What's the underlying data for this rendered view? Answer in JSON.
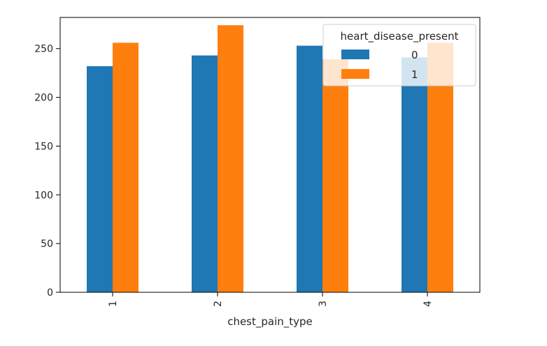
{
  "chart_data": {
    "type": "bar",
    "title": "",
    "xlabel": "chest_pain_type",
    "ylabel": "",
    "categories": [
      "1",
      "2",
      "3",
      "4"
    ],
    "series": [
      {
        "name": "0",
        "values": [
          232,
          243,
          253,
          241
        ],
        "color": "#1f77b4"
      },
      {
        "name": "1",
        "values": [
          256,
          274,
          239,
          256
        ],
        "color": "#ff7f0e"
      }
    ],
    "ylim": [
      0,
      282
    ],
    "yticks": [
      0,
      50,
      100,
      150,
      200,
      250
    ],
    "grid": false,
    "legend": {
      "title": "heart_disease_present",
      "placement": "top-right"
    }
  }
}
